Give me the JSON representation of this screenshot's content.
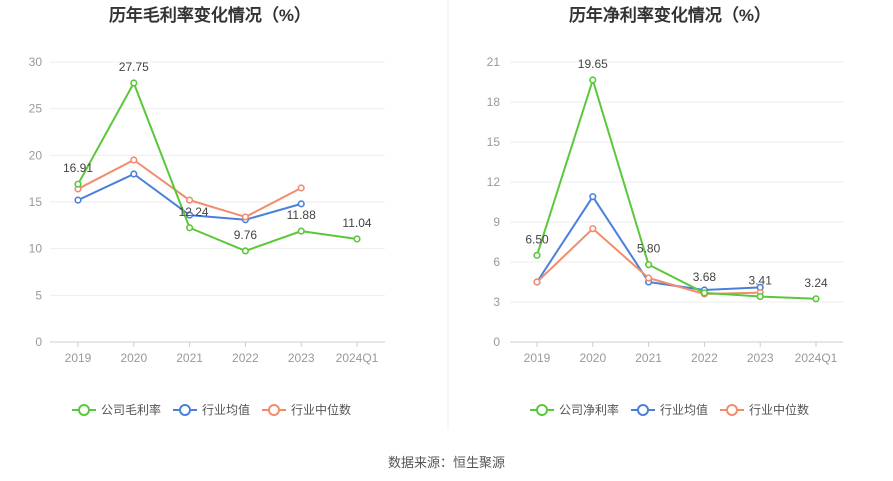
{
  "source": "数据来源：恒生聚源",
  "chart_data": [
    {
      "type": "line",
      "title": "历年毛利率变化情况（%）",
      "categories": [
        "2019",
        "2020",
        "2021",
        "2022",
        "2023",
        "2024Q1"
      ],
      "yticks": [
        "0",
        "5",
        "10",
        "15",
        "20",
        "25",
        "30"
      ],
      "ylim": [
        0,
        30
      ],
      "grid": true,
      "legend_position": "bottom",
      "series": [
        {
          "name": "公司毛利率",
          "color": "#5ac83a",
          "values": [
            16.91,
            27.75,
            12.24,
            9.76,
            11.88,
            11.04
          ],
          "labels": [
            "16.91",
            "27.75",
            "12.24",
            "9.76",
            "11.88",
            "11.04"
          ]
        },
        {
          "name": "行业均值",
          "color": "#4a7fdc",
          "values": [
            15.2,
            18.0,
            13.6,
            13.1,
            14.8,
            null
          ]
        },
        {
          "name": "行业中位数",
          "color": "#f28c6c",
          "values": [
            16.4,
            19.5,
            15.2,
            13.4,
            16.5,
            null
          ]
        }
      ]
    },
    {
      "type": "line",
      "title": "历年净利率变化情况（%）",
      "categories": [
        "2019",
        "2020",
        "2021",
        "2022",
        "2023",
        "2024Q1"
      ],
      "yticks": [
        "0",
        "3",
        "6",
        "9",
        "12",
        "15",
        "18",
        "21"
      ],
      "ylim": [
        0,
        21
      ],
      "grid": true,
      "legend_position": "bottom",
      "series": [
        {
          "name": "公司净利率",
          "color": "#5ac83a",
          "values": [
            6.5,
            19.65,
            5.8,
            3.68,
            3.41,
            3.24
          ],
          "labels": [
            "6.50",
            "19.65",
            "5.80",
            "3.68",
            "3.41",
            "3.24"
          ]
        },
        {
          "name": "行业均值",
          "color": "#4a7fdc",
          "values": [
            4.5,
            10.9,
            4.5,
            3.9,
            4.1,
            null
          ]
        },
        {
          "name": "行业中位数",
          "color": "#f28c6c",
          "values": [
            4.5,
            8.5,
            4.8,
            3.6,
            3.7,
            null
          ]
        }
      ]
    }
  ]
}
